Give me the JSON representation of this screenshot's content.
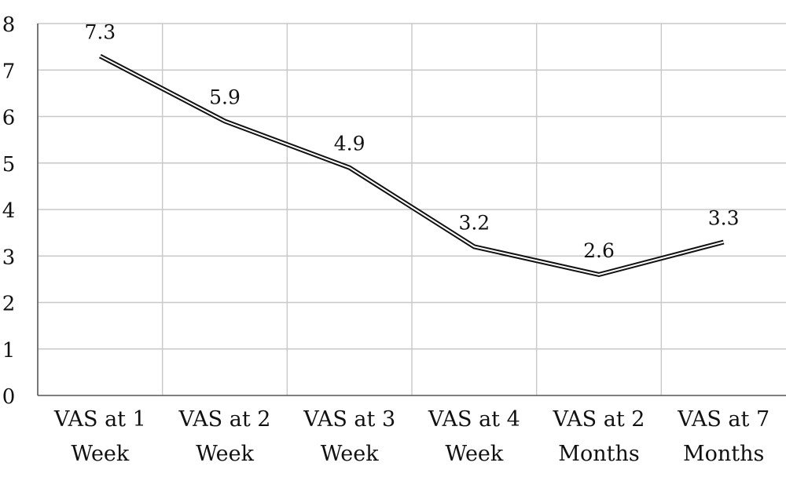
{
  "chart_data": {
    "type": "line",
    "title": "",
    "xlabel": "",
    "ylabel": "",
    "categories": [
      [
        "VAS at 1",
        "Week"
      ],
      [
        "VAS at 2",
        "Week"
      ],
      [
        "VAS at 3",
        "Week"
      ],
      [
        "VAS at 4",
        "Week"
      ],
      [
        "VAS at 2",
        "Months"
      ],
      [
        "VAS at 7",
        "Months"
      ]
    ],
    "values": [
      7.3,
      5.9,
      4.9,
      3.2,
      2.6,
      3.3
    ],
    "data_labels": [
      "7.3",
      "5.9",
      "4.9",
      "3.2",
      "2.6",
      "3.3"
    ],
    "ylim": [
      0,
      8
    ],
    "yticks": [
      0,
      1,
      2,
      3,
      4,
      5,
      6,
      7,
      8
    ],
    "grid": true,
    "legend": "none",
    "colors": {
      "line": "#111111",
      "grid": "#c8c8c8",
      "axis": "#555555"
    }
  }
}
